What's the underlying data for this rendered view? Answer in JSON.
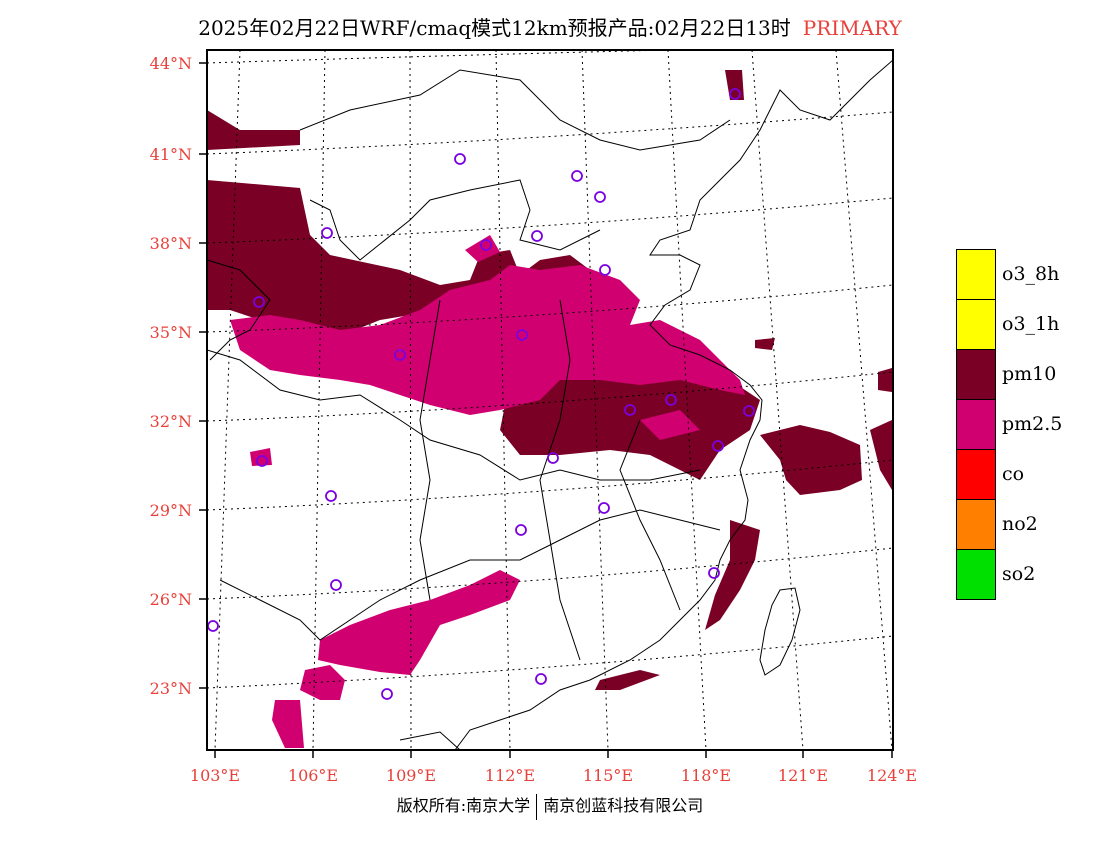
{
  "title": {
    "main": "2025年02月22日WRF/cmaq模式12km预报产品:02月22日13时",
    "tag": "PRIMARY"
  },
  "latitude_labels": [
    "44°N",
    "41°N",
    "38°N",
    "35°N",
    "32°N",
    "29°N",
    "26°N",
    "23°N"
  ],
  "longitude_labels": [
    "103°E",
    "106°E",
    "109°E",
    "112°E",
    "115°E",
    "118°E",
    "121°E",
    "124°E"
  ],
  "legend": [
    {
      "label": "o3_8h",
      "color": "#ffff00"
    },
    {
      "label": "o3_1h",
      "color": "#ffff00"
    },
    {
      "label": "pm10",
      "color": "#7a0025"
    },
    {
      "label": "pm2.5",
      "color": "#d10070"
    },
    {
      "label": "co",
      "color": "#ff0000"
    },
    {
      "label": "no2",
      "color": "#ff7f00"
    },
    {
      "label": "so2",
      "color": "#00e000"
    }
  ],
  "colors": {
    "pm10": "#7a0025",
    "pm25": "#d10070",
    "station_marker": "#7b00e0",
    "label_red": "#e8403a"
  },
  "copyright": {
    "left": "版权所有:南京大学",
    "right": "南京创蓝科技有限公司"
  }
}
